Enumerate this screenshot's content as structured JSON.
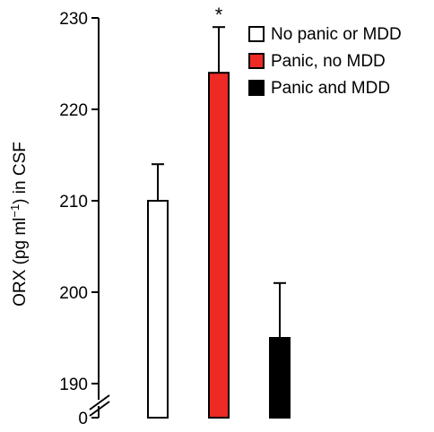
{
  "chart_data": {
    "type": "bar",
    "categories": [
      "No panic or MDD",
      "Panic, no MDD",
      "Panic and MDD"
    ],
    "values": [
      210,
      224,
      195
    ],
    "errors": [
      4,
      5,
      6
    ],
    "colors": [
      "#ffffff",
      "#ee2a24",
      "#000000"
    ],
    "significance": [
      "",
      "*",
      ""
    ],
    "ylabel_main": "ORX (pg ml",
    "ylabel_sup": "−1",
    "ylabel_tail": ") in CSF",
    "ylim": [
      190,
      230
    ],
    "yticks": [
      190,
      200,
      210,
      220,
      230
    ],
    "zero_label": "0",
    "axis_break": true,
    "legend_position": "top-right"
  }
}
